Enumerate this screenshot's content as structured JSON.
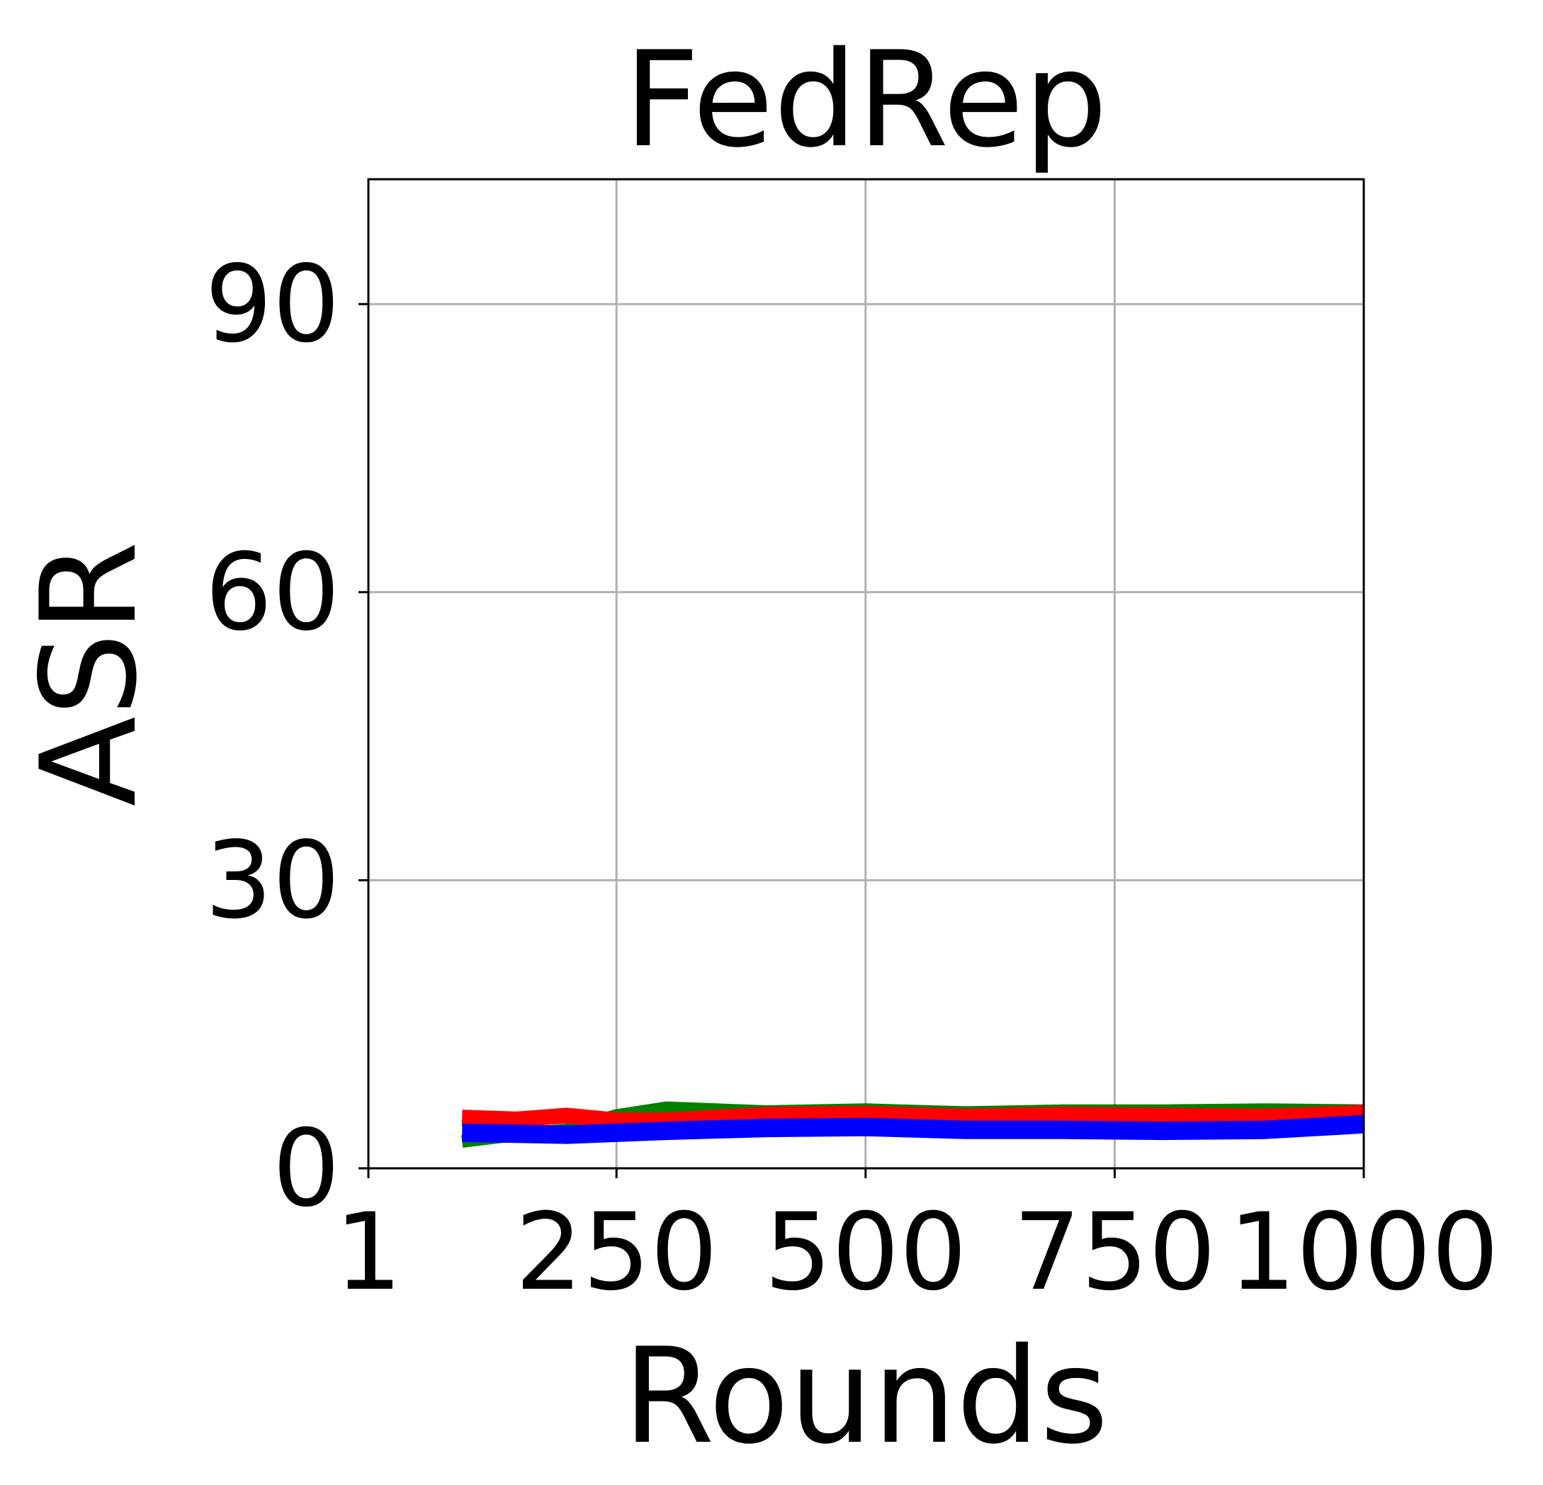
{
  "chart_data": {
    "type": "line",
    "title": "FedRep",
    "xlabel": "Rounds",
    "ylabel": "ASR",
    "xlim": [
      1,
      1000
    ],
    "ylim": [
      0,
      103
    ],
    "x_ticks": [
      1,
      250,
      500,
      750,
      1000
    ],
    "x_tick_labels": [
      "1",
      "250",
      "500",
      "750",
      "1000"
    ],
    "y_ticks": [
      0,
      30,
      60,
      90
    ],
    "y_tick_labels": [
      "0",
      "30",
      "60",
      "90"
    ],
    "grid": true,
    "series": [
      {
        "color": "#008000",
        "x": [
          95,
          150,
          200,
          250,
          300,
          400,
          500,
          600,
          700,
          800,
          900,
          1000
        ],
        "y": [
          2.8,
          3.5,
          4.0,
          5.5,
          6.3,
          5.9,
          6.1,
          5.8,
          6.0,
          6.0,
          6.1,
          6.0
        ]
      },
      {
        "color": "#ff0000",
        "x": [
          95,
          150,
          200,
          250,
          300,
          400,
          500,
          600,
          700,
          800,
          900,
          1000
        ],
        "y": [
          5.3,
          5.1,
          5.5,
          5.0,
          5.0,
          5.6,
          5.7,
          5.4,
          5.6,
          5.5,
          5.4,
          5.8
        ]
      },
      {
        "color": "#0000ff",
        "x": [
          95,
          150,
          200,
          250,
          300,
          400,
          500,
          600,
          700,
          800,
          900,
          1000
        ],
        "y": [
          3.7,
          3.6,
          3.5,
          3.7,
          3.9,
          4.2,
          4.3,
          4.0,
          4.0,
          3.9,
          4.0,
          4.6
        ]
      }
    ]
  }
}
